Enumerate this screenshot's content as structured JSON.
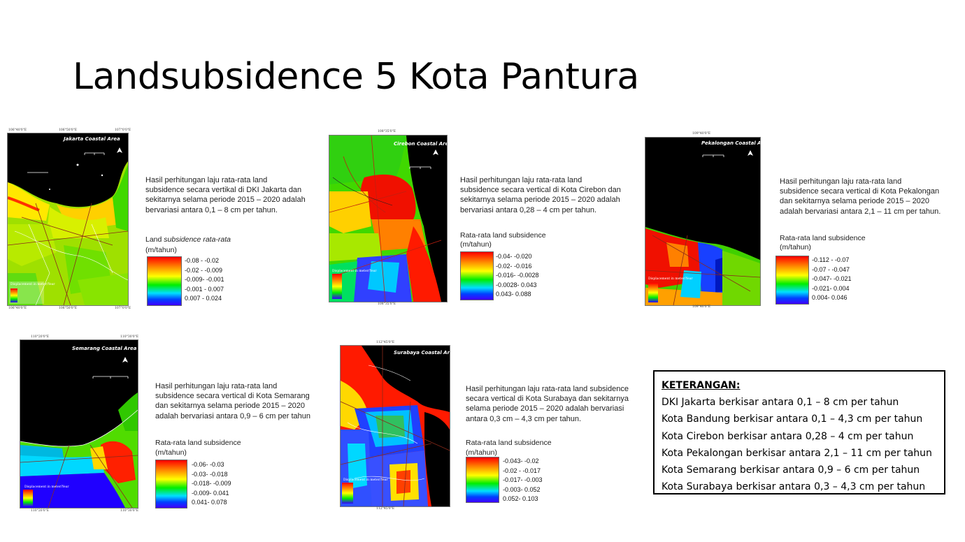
{
  "title": "Landsubsidence 5 Kota Pantura",
  "maps": {
    "jakarta": {
      "map_title": "Jakarta Coastal Area",
      "coord_top_1": "106°40'0\"E",
      "coord_top_2": "106°50'0\"E",
      "coord_top_3": "107°0'0\"E",
      "coord_bottom_1": "106°40'0\"E",
      "coord_bottom_2": "106°50'0\"E",
      "coord_bottom_3": "107°0'0\"E",
      "inner_legend": "Displacement in meter/Year",
      "description": [
        "Hasil perhitungan laju rata-rata land",
        "subsidence secara vertikal di DKI Jakarta dan",
        "sekitarnya selama periode 2015 – 2020 adalah",
        "bervariasi antara 0,1 – 8 cm per tahun."
      ],
      "legend_title_plain": "Land ",
      "legend_title_italic": "subsidence rata-rata",
      "legend_unit": "(m/tahun)",
      "legend_labels": [
        "-0.08 - -0.02",
        "-0.02 - -0.009",
        "-0.009- -0.001",
        "-0.001 - 0.007",
        "0.007 - 0.024"
      ]
    },
    "cirebon": {
      "map_title": "Cirebon Coastal Area",
      "coord_top": "108°35'0\"E",
      "coord_bottom": "108°35'0\"E",
      "inner_legend": "Displacement in meter/Year",
      "description": [
        "Hasil perhitungan laju rata-rata land",
        "subsidence secara vertical di Kota Cirebon dan",
        "sekitarnya selama periode 2015 – 2020 adalah",
        "bervariasi antara 0,28 – 4 cm per tahun."
      ],
      "legend_title": "Rata-rata land subsidence",
      "legend_unit": "(m/tahun)",
      "legend_labels": [
        "-0.04- -0.020",
        "-0.02- -0.016",
        "-0.016- -0.0028",
        "-0.0028- 0.043",
        "0.043- 0.088"
      ]
    },
    "pekalongan": {
      "map_title": "Pekalongan Coastal Area",
      "coord_top": "109°40'0\"E",
      "coord_bottom": "109°40'0\"E",
      "inner_legend": "Displacement in meter/Year",
      "description": [
        "Hasil perhitungan laju rata-rata land",
        "subsidence secara vertical di Kota Pekalongan",
        "dan sekitarnya selama periode 2015 – 2020",
        "adalah bervariasi antara 2,1 – 11 cm per tahun."
      ],
      "legend_title": "Rata-rata land subsidence",
      "legend_unit": "(m/tahun)",
      "legend_labels": [
        "-0.112 - -0.07",
        "-0.07 - -0.047",
        "-0.047- -0.021",
        "-0.021- 0.004",
        "0.004- 0.046"
      ]
    },
    "semarang": {
      "map_title": "Semarang Coastal Area",
      "coord_top_1": "110°20'0\"E",
      "coord_top_2": "110°30'0\"E",
      "coord_bottom_1": "110°20'0\"E",
      "coord_bottom_2": "110°30'0\"E",
      "inner_legend": "Displacement in meter/Year",
      "description": [
        "Hasil perhitungan laju rata-rata land",
        "subsidence secara vertical di Kota Semarang",
        "dan sekitarnya selama periode 2015 – 2020",
        "adalah bervariasi antara 0,9 – 6 cm per tahun"
      ],
      "legend_title": "Rata-rata land subsidence",
      "legend_unit": "(m/tahun)",
      "legend_labels": [
        "-0.06- -0.03",
        "-0.03- -0.018",
        "-0.018- -0.009",
        "-0.009- 0.041",
        "0.041- 0.078"
      ]
    },
    "surabaya": {
      "map_title": "Surabaya Coastal Area",
      "coord_top": "112°45'0\"E",
      "coord_bottom": "112°45'0\"E",
      "inner_legend": "Displacement in meter/Year",
      "description": [
        "Hasil perhitungan laju rata-rata land subsidence",
        "secara vertical di Kota Surabaya dan sekitarnya",
        "selama periode 2015 – 2020 adalah bervariasi",
        "antara 0,3 cm – 4,3 cm per tahun."
      ],
      "legend_title": "Rata-rata land subsidence",
      "legend_unit": "(m/tahun)",
      "legend_labels": [
        "-0.043- -0.02",
        "-0.02 - -0.017",
        "-0.017- -0.003",
        "-0.003- 0.052",
        "0.052- 0.103"
      ]
    }
  },
  "keterangan": {
    "title": "KETERANGAN:",
    "lines": [
      "DKI Jakarta berkisar antara 0,1 – 8 cm per tahun",
      "Kota Bandung berkisar antara 0,1 – 4,3 cm per tahun",
      "Kota Cirebon berkisar antara 0,28 – 4 cm per tahun",
      "Kota Pekalongan berkisar antara 2,1 – 11 cm per tahun",
      "Kota Semarang berkisar antara 0,9 – 6 cm per tahun",
      "Kota Surabaya berkisar antara 0,3 – 4,3 cm per tahun"
    ]
  },
  "colors": {
    "sea": "#000000",
    "high_subsidence": "#ff0000",
    "mid": "#ffff00",
    "low": "#00dd00",
    "uplift": "#3000ff"
  }
}
